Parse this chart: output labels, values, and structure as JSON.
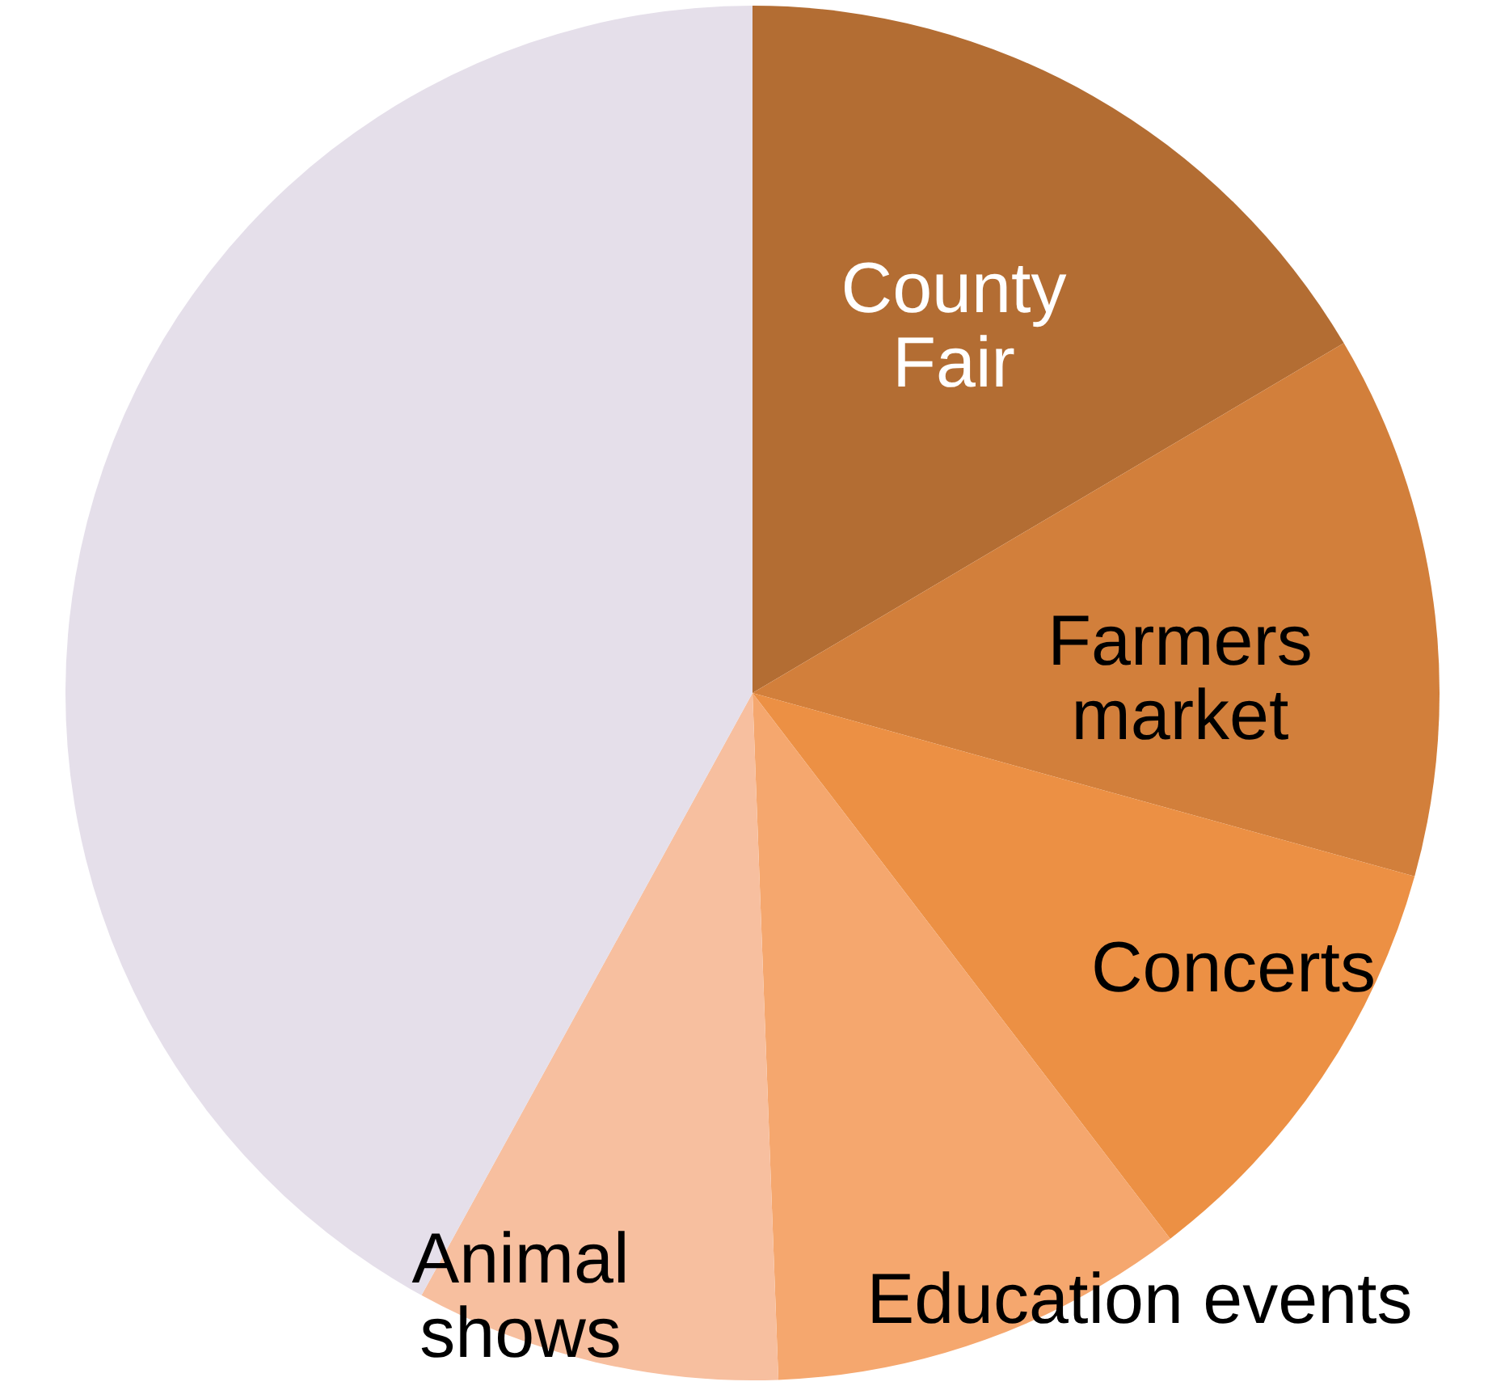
{
  "chart_data": {
    "type": "pie",
    "categories": [
      "County\nFair",
      "Farmers\nmarket",
      "Concerts",
      "Education events",
      "Animal\nshows",
      null
    ],
    "values": [
      16.5,
      12.8,
      10.3,
      9.8,
      8.6,
      42.0
    ],
    "colors": [
      "#b36d33",
      "#d27f3b",
      "#ec9044",
      "#f5a76e",
      "#f7bf9f",
      "#e5dfea"
    ]
  }
}
